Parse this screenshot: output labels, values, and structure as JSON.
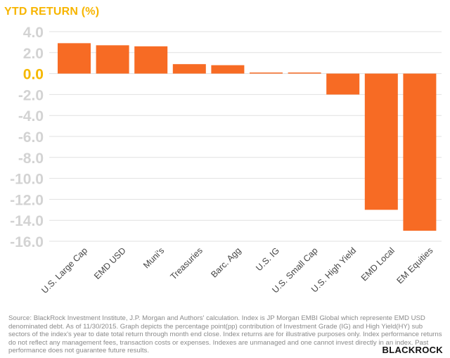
{
  "chart_data": {
    "type": "bar",
    "title": "YTD RETURN (%)",
    "categories": [
      "U.S. Large Cap",
      "EMD USD",
      "Muni's",
      "Treasuries",
      "Barc. Agg",
      "U.S. IG",
      "U.S. Small Cap",
      "U.S. High Yield",
      "EMD Local",
      "EM Equities"
    ],
    "values": [
      2.9,
      2.7,
      2.6,
      0.9,
      0.8,
      0.1,
      0.1,
      -2.0,
      -13.0,
      -15.0
    ],
    "ylim": [
      -16,
      4
    ],
    "yticks": [
      "4.0",
      "2.0",
      "0.0",
      "-2.0",
      "-4.0",
      "-6.0",
      "-8.0",
      "-10.0",
      "-12.0",
      "-14.0",
      "-16.0"
    ],
    "grid": true,
    "xlabel": "",
    "ylabel": ""
  },
  "colors": {
    "bar": "#F76B24",
    "title": "#F7B500",
    "zero_tick": "#F5B800",
    "tick": "#D3D3D3",
    "grid": "#E1E1E1"
  },
  "footnote": "Source: BlackRock Investment Institute, J.P. Morgan and Authors' calculation. Index is JP Morgan EMBI Global which represente EMD USD denominated debt. As of 11/30/2015. Graph depicts the percentage point(pp) contribution of Investment Grade (IG) and High Yield(HY) sub sectors of the index's year to date total return through month end close. Index returns are for illustrative purposes only. Index performance returns do not reflect any management fees, transaction costs or expenses. Indexes are unmanaged and one cannot invest directly in an index. Past performance does not guarantee future results.",
  "brand": "BLACKROCK"
}
